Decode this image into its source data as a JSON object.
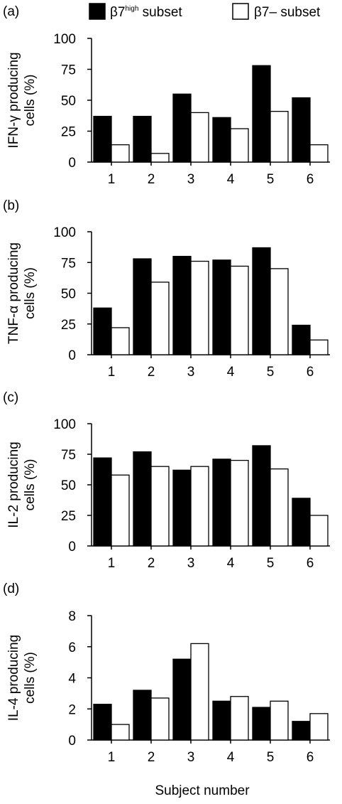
{
  "legend": {
    "series1": {
      "main": "β7",
      "sup": "high",
      "rest": " subset"
    },
    "series2": "β7– subset"
  },
  "colors": {
    "series1": "#000000",
    "series2": "#ffffff",
    "stroke": "#000000"
  },
  "xlabel": "Subject number",
  "chart_data": [
    {
      "type": "bar",
      "panel": "(a)",
      "ylabel": "IFN-γ producing cells (%)",
      "ylabel_lines": [
        "IFN-γ producing",
        "cells (%)"
      ],
      "categories": [
        "1",
        "2",
        "3",
        "4",
        "5",
        "6"
      ],
      "yticks": [
        0,
        25,
        50,
        75,
        100
      ],
      "ylim": [
        0,
        100
      ],
      "series": [
        {
          "name": "β7high subset",
          "values": [
            37,
            37,
            55,
            36,
            78,
            52
          ]
        },
        {
          "name": "β7– subset",
          "values": [
            14,
            7,
            40,
            27,
            41,
            14
          ]
        }
      ]
    },
    {
      "type": "bar",
      "panel": "(b)",
      "ylabel": "TNF-α producing cells (%)",
      "ylabel_lines": [
        "TNF-α producing",
        "cells (%)"
      ],
      "categories": [
        "1",
        "2",
        "3",
        "4",
        "5",
        "6"
      ],
      "yticks": [
        0,
        25,
        50,
        75,
        100
      ],
      "ylim": [
        0,
        100
      ],
      "series": [
        {
          "name": "β7high subset",
          "values": [
            38,
            78,
            80,
            77,
            87,
            24
          ]
        },
        {
          "name": "β7– subset",
          "values": [
            22,
            59,
            76,
            72,
            70,
            12
          ]
        }
      ]
    },
    {
      "type": "bar",
      "panel": "(c)",
      "ylabel": "IL-2 producing cells (%)",
      "ylabel_lines": [
        "IL-2 producing",
        "cells (%)"
      ],
      "categories": [
        "1",
        "2",
        "3",
        "4",
        "5",
        "6"
      ],
      "yticks": [
        0,
        25,
        50,
        75,
        100
      ],
      "ylim": [
        0,
        100
      ],
      "series": [
        {
          "name": "β7high subset",
          "values": [
            72,
            77,
            62,
            71,
            82,
            39
          ]
        },
        {
          "name": "β7– subset",
          "values": [
            58,
            65,
            65,
            70,
            63,
            25
          ]
        }
      ]
    },
    {
      "type": "bar",
      "panel": "(d)",
      "ylabel": "IL-4 producing cells (%)",
      "ylabel_lines": [
        "IL-4 producing",
        "cells (%)"
      ],
      "categories": [
        "1",
        "2",
        "3",
        "4",
        "5",
        "6"
      ],
      "yticks": [
        0,
        2,
        4,
        6,
        8
      ],
      "ylim": [
        0,
        8
      ],
      "series": [
        {
          "name": "β7high subset",
          "values": [
            2.3,
            3.2,
            5.2,
            2.5,
            2.1,
            1.2
          ]
        },
        {
          "name": "β7– subset",
          "values": [
            1.0,
            2.7,
            6.2,
            2.8,
            2.5,
            1.7
          ]
        }
      ]
    }
  ]
}
